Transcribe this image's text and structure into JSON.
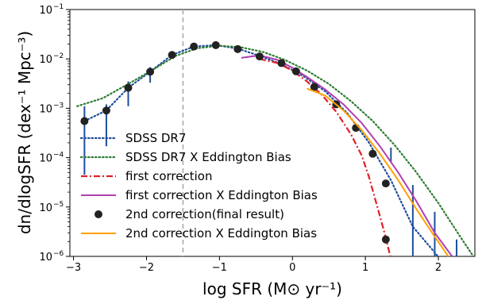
{
  "chart_data": {
    "type": "line",
    "xlabel": "log SFR (M⊙ yr⁻¹)",
    "ylabel": "dn/dlogSFR (dex⁻¹ Mpc⁻³)",
    "xlim": [
      -3.05,
      2.5
    ],
    "ylim": [
      1e-06,
      0.1
    ],
    "yscale": "log",
    "grid": false,
    "legend_position": "lower-left",
    "x_ticks": [
      -3,
      -2,
      -1,
      0,
      1,
      2
    ],
    "x_tick_labels": [
      "−3",
      "−2",
      "−1",
      "0",
      "1",
      "2"
    ],
    "y_ticks": [
      1e-06,
      1e-05,
      0.0001,
      0.001,
      0.01,
      0.1
    ],
    "y_tick_labels": [
      {
        "base": "10",
        "exp": "−6"
      },
      {
        "base": "10",
        "exp": "−5"
      },
      {
        "base": "10",
        "exp": "−4"
      },
      {
        "base": "10",
        "exp": "−3"
      },
      {
        "base": "10",
        "exp": "−2"
      },
      {
        "base": "10",
        "exp": "−1"
      }
    ],
    "vertical_line": {
      "x": -1.5,
      "color": "#aaaaaa",
      "style": "dashed"
    },
    "series": [
      {
        "name": "SDSS DR7",
        "style": "dotted",
        "color": "#1f4e9c",
        "kind": "line_errorbar",
        "x": [
          -2.85,
          -2.55,
          -2.25,
          -1.95,
          -1.65,
          -1.35,
          -1.05,
          -0.75,
          -0.45,
          -0.15,
          0.15,
          0.45,
          0.75,
          1.05,
          1.35,
          1.65,
          1.95,
          2.15
        ],
        "y": [
          0.00055,
          0.0009,
          0.0026,
          0.0055,
          0.012,
          0.0178,
          0.019,
          0.0162,
          0.0115,
          0.0078,
          0.0045,
          0.0022,
          0.0008,
          0.0002,
          3.5e-05,
          4e-06,
          1.2e-06,
          5e-07
        ],
        "errorbars": [
          {
            "x": -2.85,
            "lo": 4.5e-05,
            "hi": 0.0011
          },
          {
            "x": -2.55,
            "lo": 0.00017,
            "hi": 0.0012
          },
          {
            "x": -2.25,
            "lo": 0.0011,
            "hi": 0.0035
          },
          {
            "x": -1.95,
            "lo": 0.0033,
            "hi": 0.0068
          },
          {
            "x": -1.65,
            "lo": 0.0102,
            "hi": 0.0135
          },
          {
            "x": 1.35,
            "lo": 8e-05,
            "hi": 0.00016
          },
          {
            "x": 1.65,
            "lo": 1e-06,
            "hi": 2.8e-05
          },
          {
            "x": 1.95,
            "lo": 1e-06,
            "hi": 8e-06
          },
          {
            "x": 2.25,
            "lo": 1e-06,
            "hi": 2.2e-06
          }
        ]
      },
      {
        "name": "SDSS DR7 X Eddington Bias",
        "style": "dotted",
        "color": "#2e7d32",
        "kind": "line",
        "x": [
          -2.95,
          -2.6,
          -2.25,
          -1.9,
          -1.6,
          -1.3,
          -1.0,
          -0.7,
          -0.4,
          -0.1,
          0.2,
          0.5,
          0.8,
          1.1,
          1.4,
          1.7,
          2.0,
          2.3,
          2.5
        ],
        "y": [
          0.0011,
          0.0016,
          0.0031,
          0.0062,
          0.0115,
          0.0165,
          0.0185,
          0.0172,
          0.0138,
          0.0095,
          0.0058,
          0.0031,
          0.0014,
          0.00055,
          0.00018,
          5e-05,
          1.2e-05,
          2.5e-06,
          9e-07
        ]
      },
      {
        "name": "first correction",
        "style": "dashdot",
        "color": "#e0202a",
        "kind": "line",
        "x": [
          -0.45,
          -0.2,
          0.0,
          0.2,
          0.4,
          0.6,
          0.8,
          0.95,
          1.05,
          1.15,
          1.25,
          1.35
        ],
        "y": [
          0.01,
          0.0082,
          0.0058,
          0.0035,
          0.0019,
          0.00085,
          0.0003,
          0.00011,
          4e-05,
          1.2e-05,
          3.5e-06,
          9e-07
        ]
      },
      {
        "name": "first correction X Eddington Bias",
        "style": "solid",
        "color": "#b040b0",
        "kind": "line",
        "x": [
          -0.7,
          -0.45,
          -0.2,
          0.0,
          0.2,
          0.45,
          0.7,
          0.95,
          1.2,
          1.45,
          1.7,
          1.95,
          2.15,
          2.3
        ],
        "y": [
          0.0105,
          0.0118,
          0.0095,
          0.0066,
          0.0043,
          0.0024,
          0.0012,
          0.0005,
          0.00017,
          5e-05,
          1.3e-05,
          3e-06,
          1.2e-06,
          6e-07
        ]
      },
      {
        "name": "2nd correction(final result)",
        "style": "marker",
        "color": "#222222",
        "kind": "scatter",
        "x": [
          -2.85,
          -2.55,
          -2.25,
          -1.95,
          -1.65,
          -1.35,
          -1.05,
          -0.75,
          -0.45,
          -0.15,
          0.05,
          0.3,
          0.6,
          0.87,
          1.1,
          1.28,
          1.28
        ],
        "y": [
          0.00055,
          0.0009,
          0.0026,
          0.0055,
          0.012,
          0.0178,
          0.019,
          0.0158,
          0.0112,
          0.0082,
          0.0056,
          0.0027,
          0.0012,
          0.0004,
          0.00012,
          3e-05,
          2.2e-06
        ]
      },
      {
        "name": "2nd correction X Eddington Bias",
        "style": "solid",
        "color": "#ffa000",
        "kind": "line",
        "x": [
          0.2,
          0.45,
          0.7,
          0.95,
          1.2,
          1.45,
          1.7,
          1.95,
          2.1,
          2.2
        ],
        "y": [
          0.0025,
          0.0018,
          0.0009,
          0.00036,
          0.00012,
          3.5e-05,
          9e-06,
          2.5e-06,
          1.2e-06,
          7e-07
        ]
      }
    ]
  }
}
